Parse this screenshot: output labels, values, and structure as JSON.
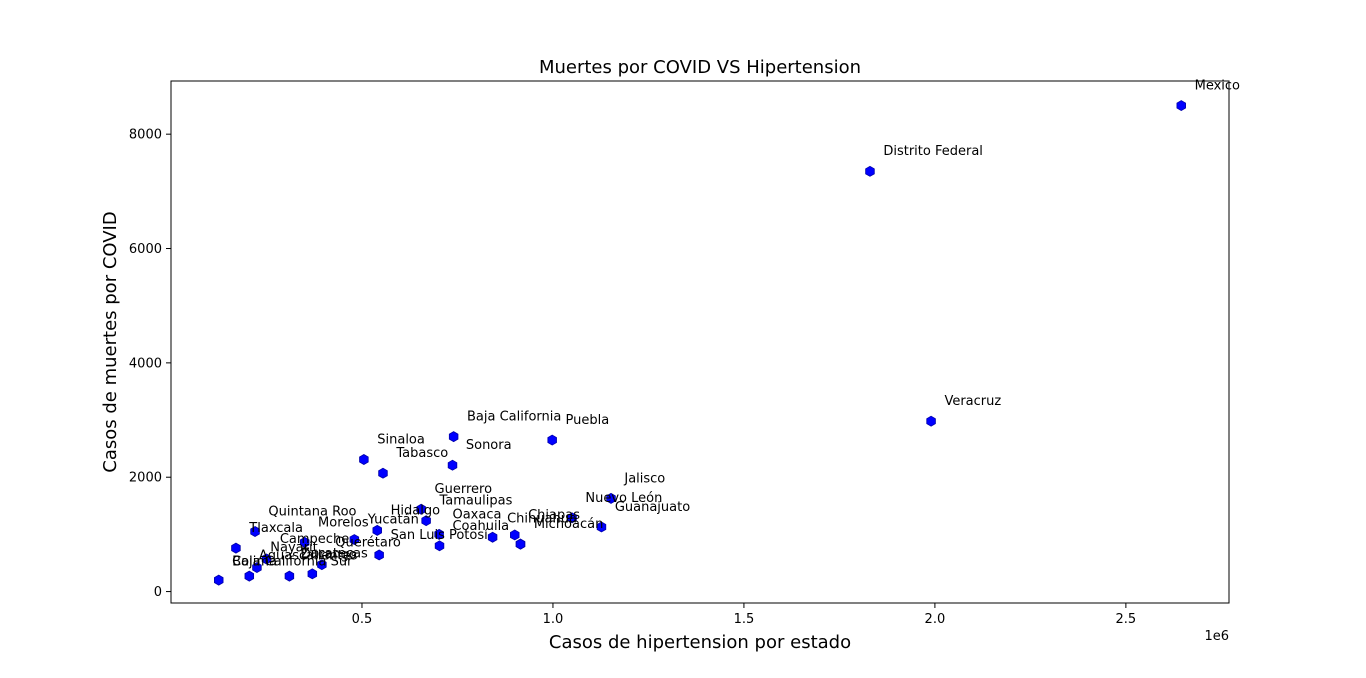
{
  "chart_data": {
    "type": "scatter",
    "title": "Muertes por COVID VS Hipertension",
    "xlabel": "Casos de hipertension por estado",
    "ylabel": "Casos de muertes por COVID",
    "x_offset_label": "1e6",
    "xlim": [
      0,
      2.77
    ],
    "ylim": [
      -200,
      8930
    ],
    "x_ticks": [
      0.5,
      1.0,
      1.5,
      2.0,
      2.5
    ],
    "x_tick_labels": [
      "0.5",
      "1.0",
      "1.5",
      "2.0",
      "2.5"
    ],
    "y_ticks": [
      0,
      2000,
      4000,
      6000,
      8000
    ],
    "y_tick_labels": [
      "0",
      "2000",
      "4000",
      "6000",
      "8000"
    ],
    "grid": false,
    "marker": "hexagon",
    "marker_color": "#0000ff",
    "points": [
      {
        "label": "Mexico",
        "x": 2.645,
        "y": 8500
      },
      {
        "label": "Distrito Federal",
        "x": 1.83,
        "y": 7350
      },
      {
        "label": "Veracruz",
        "x": 1.99,
        "y": 2980
      },
      {
        "label": "Baja California",
        "x": 0.74,
        "y": 2710
      },
      {
        "label": "Puebla",
        "x": 0.998,
        "y": 2650
      },
      {
        "label": "Sinaloa",
        "x": 0.505,
        "y": 2310
      },
      {
        "label": "Sonora",
        "x": 0.737,
        "y": 2210
      },
      {
        "label": "Tabasco",
        "x": 0.555,
        "y": 2070
      },
      {
        "label": "Jalisco",
        "x": 1.152,
        "y": 1630
      },
      {
        "label": "Guerrero",
        "x": 0.655,
        "y": 1440
      },
      {
        "label": "Nuevo León",
        "x": 1.05,
        "y": 1290
      },
      {
        "label": "Tamaulipas",
        "x": 0.668,
        "y": 1240
      },
      {
        "label": "Guanajuato",
        "x": 1.127,
        "y": 1130
      },
      {
        "label": "Hidalgo",
        "x": 0.54,
        "y": 1070
      },
      {
        "label": "Quintana Roo",
        "x": 0.22,
        "y": 1050
      },
      {
        "label": "Oaxaca",
        "x": 0.702,
        "y": 1000
      },
      {
        "label": "Chiapas",
        "x": 0.9,
        "y": 990
      },
      {
        "label": "Coahuila",
        "x": 0.842,
        "y": 950
      },
      {
        "label": "Yucatán",
        "x": 0.48,
        "y": 910
      },
      {
        "label": "Morelos",
        "x": 0.35,
        "y": 860
      },
      {
        "label": "Chihuahua",
        "x": 0.915,
        "y": 830
      },
      {
        "label": "Michoacán",
        "x": 0.915,
        "y": 830
      },
      {
        "label": "San Luis Potosí",
        "x": 0.703,
        "y": 800
      },
      {
        "label": "Tlaxcala",
        "x": 0.17,
        "y": 760
      },
      {
        "label": "Campeche",
        "x": 0.25,
        "y": 570
      },
      {
        "label": "Querétaro",
        "x": 0.545,
        "y": 640
      },
      {
        "label": "Nayarit",
        "x": 0.225,
        "y": 420
      },
      {
        "label": "Aguascalientes",
        "x": 0.31,
        "y": 270
      },
      {
        "label": "Zacatecas",
        "x": 0.395,
        "y": 470
      },
      {
        "label": "Durango",
        "x": 0.37,
        "y": 310
      },
      {
        "label": "Baja California Sur",
        "x": 0.205,
        "y": 270
      },
      {
        "label": "Colima",
        "x": 0.125,
        "y": 200
      }
    ],
    "annotations": [
      {
        "text": "Mexico",
        "x": 2.68,
        "y": 8780
      },
      {
        "text": "Distrito Federal",
        "x": 1.865,
        "y": 7640
      },
      {
        "text": "Veracruz",
        "x": 2.025,
        "y": 3260
      },
      {
        "text": "Baja California",
        "x": 0.775,
        "y": 2990
      },
      {
        "text": "Puebla",
        "x": 1.033,
        "y": 2930
      },
      {
        "text": "Sinaloa",
        "x": 0.54,
        "y": 2590
      },
      {
        "text": "Sonora",
        "x": 0.772,
        "y": 2490
      },
      {
        "text": "Tabasco",
        "x": 0.59,
        "y": 2350
      },
      {
        "text": "Jalisco",
        "x": 1.187,
        "y": 1910
      },
      {
        "text": "Guerrero",
        "x": 0.69,
        "y": 1720
      },
      {
        "text": "Nuevo León",
        "x": 1.085,
        "y": 1570
      },
      {
        "text": "Tamaulipas",
        "x": 0.703,
        "y": 1520
      },
      {
        "text": "Guanajuato",
        "x": 1.162,
        "y": 1410
      },
      {
        "text": "Hidalgo",
        "x": 0.575,
        "y": 1350
      },
      {
        "text": "Quintana Roo",
        "x": 0.255,
        "y": 1330
      },
      {
        "text": "Oaxaca",
        "x": 0.737,
        "y": 1280
      },
      {
        "text": "Chiapas",
        "x": 0.935,
        "y": 1270
      },
      {
        "text": "Coahuila",
        "x": 0.737,
        "y": 1080
      },
      {
        "text": "Yucatán",
        "x": 0.515,
        "y": 1190
      },
      {
        "text": "Morelos",
        "x": 0.385,
        "y": 1140
      },
      {
        "text": "Chihuahua",
        "x": 0.88,
        "y": 1210
      },
      {
        "text": "Michoacán",
        "x": 0.95,
        "y": 1110
      },
      {
        "text": "San Luis Potosí",
        "x": 0.575,
        "y": 920
      },
      {
        "text": "Tlaxcala",
        "x": 0.205,
        "y": 1040
      },
      {
        "text": "Campeche",
        "x": 0.285,
        "y": 850
      },
      {
        "text": "Querétaro",
        "x": 0.43,
        "y": 790
      },
      {
        "text": "Nayarit",
        "x": 0.26,
        "y": 700
      },
      {
        "text": "Aguascalientes",
        "x": 0.23,
        "y": 560
      },
      {
        "text": "Zacatecas",
        "x": 0.34,
        "y": 600
      },
      {
        "text": "Durango",
        "x": 0.34,
        "y": 580
      },
      {
        "text": "Baja California Sur",
        "x": 0.16,
        "y": 460
      },
      {
        "text": "Colima",
        "x": 0.16,
        "y": 460
      }
    ]
  }
}
